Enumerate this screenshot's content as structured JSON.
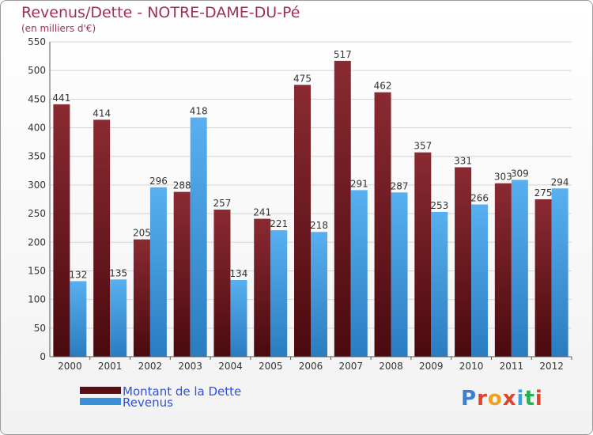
{
  "title": "Revenus/Dette - NOTRE-DAME-DU-Pé",
  "subtitle": "(en milliers d'€)",
  "logo": {
    "text": "Proxiti",
    "colors": [
      "#3a7fd0",
      "#e0442c",
      "#f0a020",
      "#e0442c",
      "#3aa0e0",
      "#2ab050",
      "#e0442c"
    ]
  },
  "colors": {
    "debt": "#7a1c22",
    "revenue": "#4aa3e8",
    "title": "#a03050"
  },
  "chart_data": {
    "type": "bar",
    "title": "Revenus/Dette - NOTRE-DAME-DU-Pé",
    "ylabel": "(en milliers d'€)",
    "xlabel": "",
    "ylim": [
      0,
      550
    ],
    "yticks": [
      0,
      50,
      100,
      150,
      200,
      250,
      300,
      350,
      400,
      450,
      500,
      550
    ],
    "grid": true,
    "legend": "bottom-left",
    "categories": [
      "2000",
      "2001",
      "2002",
      "2003",
      "2004",
      "2005",
      "2006",
      "2007",
      "2008",
      "2009",
      "2010",
      "2011",
      "2012"
    ],
    "series": [
      {
        "name": "Montant de la Dette",
        "color": "#7a1c22",
        "values": [
          441,
          414,
          205,
          288,
          257,
          241,
          475,
          517,
          462,
          357,
          331,
          303,
          275
        ]
      },
      {
        "name": "Revenus",
        "color": "#4aa3e8",
        "values": [
          132,
          135,
          296,
          418,
          134,
          221,
          218,
          291,
          287,
          253,
          266,
          309,
          294
        ]
      }
    ]
  }
}
